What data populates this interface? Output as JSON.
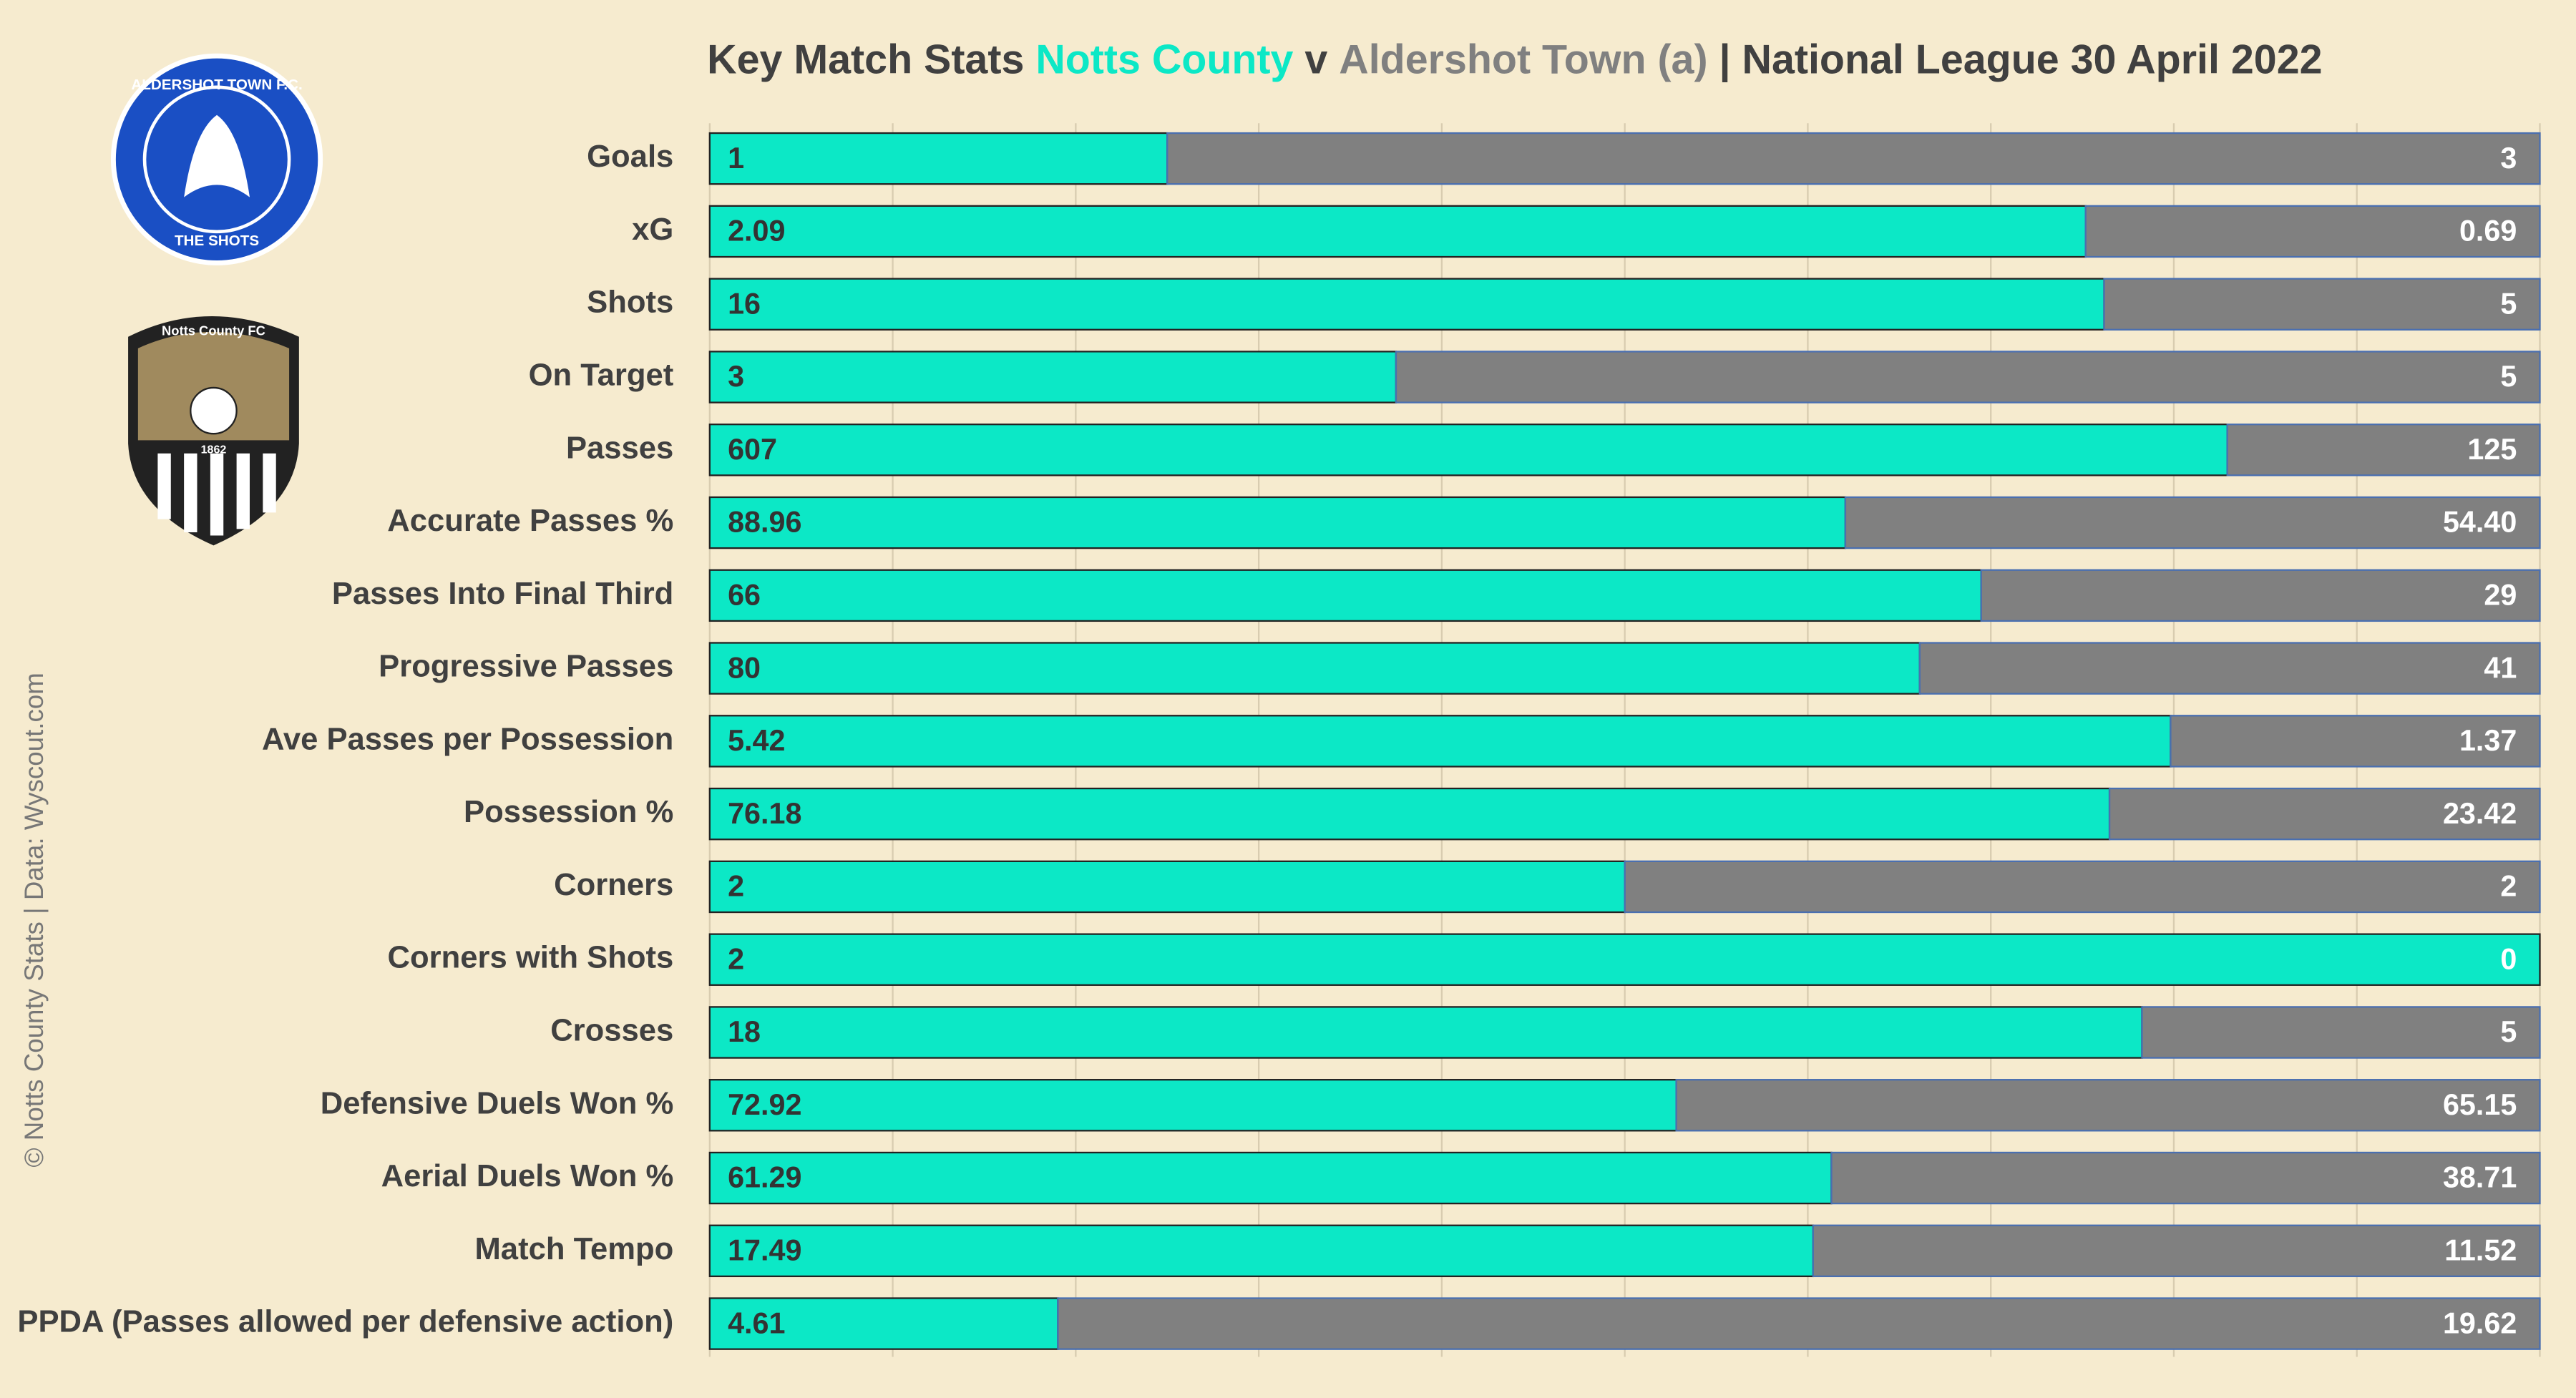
{
  "chart_data": {
    "type": "stacked_bar_100",
    "title_parts": [
      "Key Match Stats",
      "v",
      "| National League 30 April 2022"
    ],
    "credit": "© Notts County Stats | Data: Wyscout.com",
    "logos": {
      "aldershot": [
        "ALDERSHOT TOWN F.C.",
        "THE SHOTS"
      ],
      "notts": [
        "Notts County FC",
        "1862"
      ]
    },
    "categories": [
      "Goals",
      "xG",
      "Shots",
      "On Target",
      "Passes",
      "Accurate Passes %",
      "Passes Into Final Third",
      "Progressive Passes",
      "Ave Passes per Possession",
      "Possession %",
      "Corners",
      "Corners with Shots",
      "Crosses",
      "Defensive Duels Won %",
      "Aerial Duels Won %",
      "Match Tempo",
      "PPDA (Passes allowed per defensive action)"
    ],
    "series": [
      {
        "name": "Notts County",
        "color": "#0ce8c6",
        "values": [
          1,
          2.09,
          16,
          3,
          607,
          88.96,
          66,
          80,
          5.42,
          76.18,
          2,
          2,
          18,
          72.92,
          61.29,
          17.49,
          4.61
        ]
      },
      {
        "name": "Aldershot Town (a)",
        "color": "#808080",
        "values": [
          3,
          0.69,
          5,
          5,
          125,
          54.4,
          29,
          41,
          1.37,
          23.42,
          2,
          0,
          5,
          65.15,
          38.71,
          11.52,
          19.62
        ],
        "value_labels": [
          "3",
          "0.69",
          "5",
          "5",
          "125",
          "54.40",
          "29",
          "41",
          "1.37",
          "23.42",
          "2",
          "0",
          "5",
          "65.15",
          "38.71",
          "11.52",
          "19.62"
        ]
      }
    ],
    "xlim": [
      0,
      100
    ],
    "xticks": [
      0,
      10,
      20,
      30,
      40,
      50,
      60,
      70,
      80,
      90,
      100
    ],
    "grid": true
  }
}
